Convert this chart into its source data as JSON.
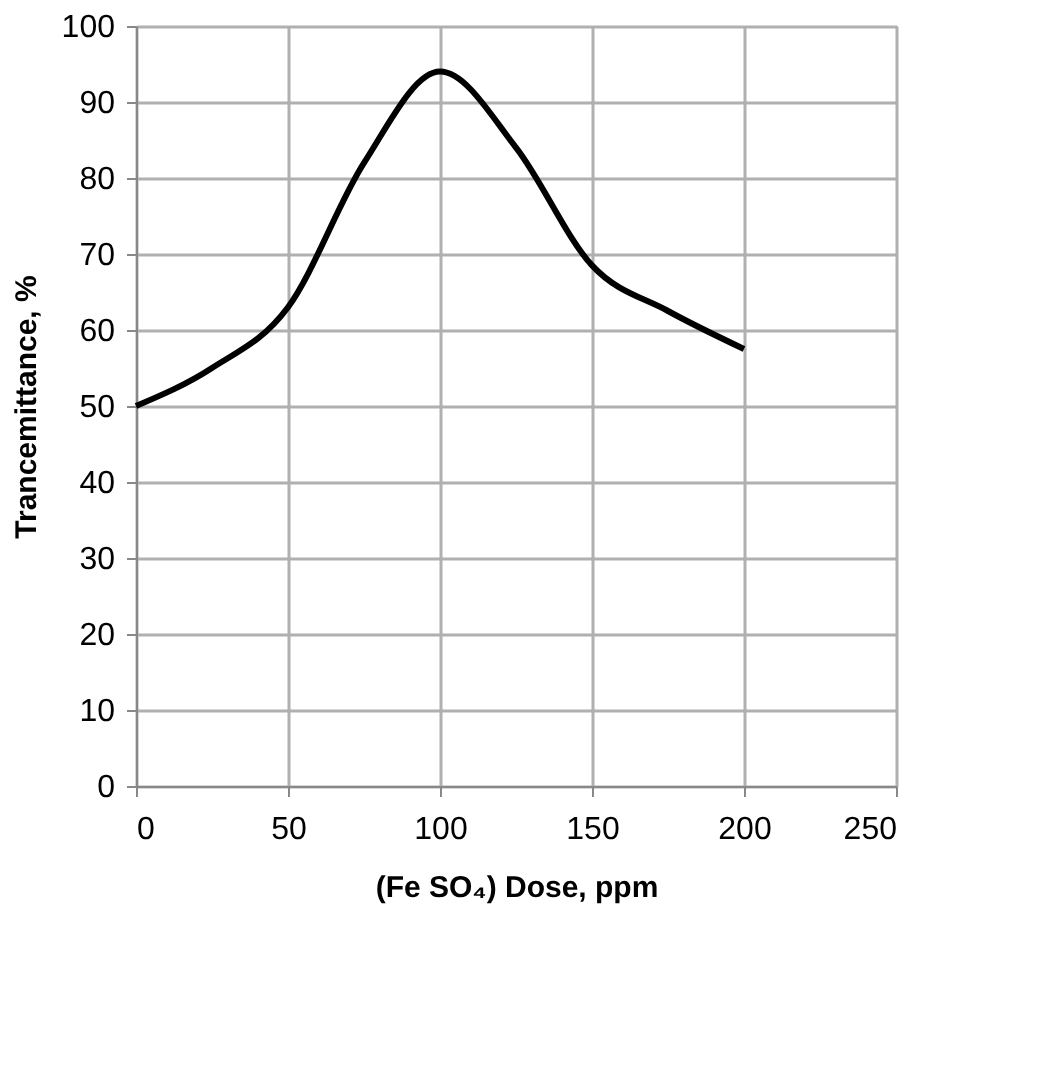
{
  "chart_data": {
    "type": "line",
    "xlabel": "(Fe SO₄) Dose, ppm",
    "ylabel": "Trancemittance, %",
    "x": [
      0,
      25,
      50,
      75,
      100,
      125,
      150,
      175,
      200
    ],
    "series": [
      {
        "color": "#000000",
        "values": [
          50,
          55,
          63,
          82,
          94,
          84,
          68.5,
          62.5,
          57.5
        ]
      }
    ],
    "xlim": [
      0,
      250
    ],
    "xticks": [
      0,
      50,
      100,
      150,
      200,
      250
    ],
    "ylim": [
      0,
      100
    ],
    "yticks": [
      0,
      10,
      20,
      30,
      40,
      50,
      60,
      70,
      80,
      90,
      100
    ],
    "grid": true,
    "marker": "none",
    "line_style": "solid"
  }
}
